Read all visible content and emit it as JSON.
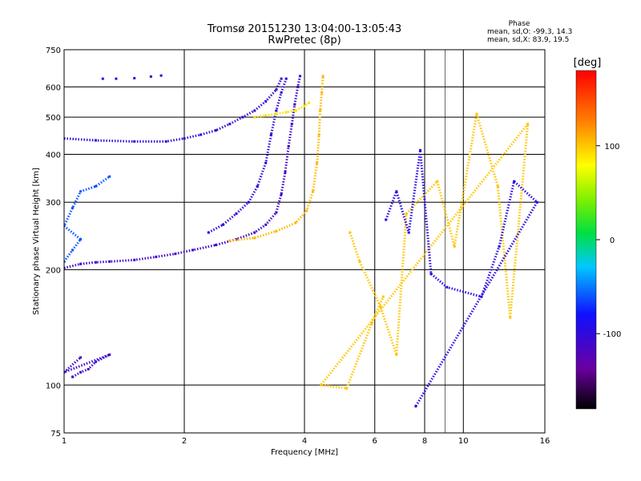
{
  "chart_data": {
    "type": "scatter",
    "title": "Tromsø 20151230 13:04:00-13:05:43",
    "subtitle": "RwPretec (8p)",
    "xlabel": "Frequency [MHz]",
    "ylabel": "Stationary phase Virtual Height [km]",
    "x_scale": "log",
    "y_scale": "log",
    "xlim": [
      1,
      16
    ],
    "ylim": [
      75,
      750
    ],
    "x_ticks": [
      1,
      2,
      4,
      6,
      8,
      10,
      16
    ],
    "x_grid": [
      1,
      2,
      4,
      6,
      8,
      10,
      16
    ],
    "x_minor_grid": [
      9
    ],
    "y_ticks": [
      75,
      100,
      200,
      300,
      400,
      500,
      600,
      750
    ],
    "y_grid": [
      100,
      200,
      300,
      400,
      500,
      600
    ],
    "phase_stats": {
      "heading": "Phase",
      "line_o": "mean, sd,O: -99.3, 14.3",
      "line_x": "mean, sd,X: 83.9, 19.5"
    },
    "colorbar": {
      "label": "[deg]",
      "range": [
        -180,
        180
      ],
      "ticks": [
        100,
        0,
        -100
      ]
    },
    "series": [
      {
        "values": [
          [
            1.0,
            202
          ],
          [
            1.1,
            207
          ],
          [
            1.2,
            209
          ],
          [
            1.3,
            210
          ],
          [
            1.5,
            212
          ],
          [
            1.7,
            216
          ],
          [
            1.9,
            220
          ],
          [
            2.1,
            225
          ],
          [
            2.4,
            232
          ],
          [
            2.7,
            240
          ],
          [
            3.0,
            250
          ],
          [
            3.2,
            262
          ],
          [
            3.4,
            282
          ],
          [
            3.5,
            315
          ],
          [
            3.58,
            360
          ],
          [
            3.65,
            420
          ],
          [
            3.72,
            480
          ],
          [
            3.78,
            540
          ],
          [
            3.85,
            600
          ],
          [
            3.9,
            640
          ]
        ],
        "phase": -110
      },
      {
        "values": [
          [
            1.0,
            440
          ],
          [
            1.2,
            435
          ],
          [
            1.5,
            432
          ],
          [
            1.8,
            432
          ],
          [
            2.0,
            440
          ],
          [
            2.2,
            450
          ],
          [
            2.4,
            462
          ],
          [
            2.6,
            480
          ],
          [
            2.8,
            500
          ],
          [
            3.0,
            520
          ],
          [
            3.2,
            550
          ],
          [
            3.4,
            590
          ],
          [
            3.5,
            630
          ]
        ],
        "phase": -105
      },
      {
        "values": [
          [
            2.3,
            250
          ],
          [
            2.5,
            262
          ],
          [
            2.7,
            280
          ],
          [
            2.9,
            300
          ],
          [
            3.05,
            330
          ],
          [
            3.2,
            380
          ],
          [
            3.3,
            450
          ],
          [
            3.4,
            520
          ],
          [
            3.5,
            580
          ],
          [
            3.6,
            630
          ]
        ],
        "phase": -100
      },
      {
        "values": [
          [
            2.6,
            238
          ],
          [
            3.0,
            242
          ],
          [
            3.4,
            252
          ],
          [
            3.8,
            265
          ],
          [
            4.05,
            285
          ],
          [
            4.2,
            320
          ],
          [
            4.3,
            380
          ],
          [
            4.35,
            450
          ],
          [
            4.38,
            520
          ],
          [
            4.42,
            580
          ],
          [
            4.45,
            640
          ]
        ],
        "phase": 105
      },
      {
        "values": [
          [
            3.0,
            500
          ],
          [
            3.2,
            505
          ],
          [
            3.4,
            510
          ],
          [
            3.6,
            515
          ],
          [
            3.8,
            520
          ],
          [
            4.0,
            535
          ],
          [
            4.1,
            545
          ]
        ],
        "phase": 90
      },
      {
        "values": [
          [
            1.25,
            630
          ],
          [
            1.35,
            630
          ],
          [
            1.5,
            632
          ],
          [
            1.65,
            638
          ],
          [
            1.75,
            642
          ]
        ],
        "phase": -100
      },
      {
        "values": [
          [
            1.0,
            210
          ],
          [
            1.05,
            225
          ],
          [
            1.1,
            240
          ],
          [
            1.0,
            260
          ],
          [
            1.05,
            290
          ],
          [
            1.1,
            320
          ],
          [
            1.2,
            330
          ],
          [
            1.3,
            350
          ]
        ],
        "phase": -60
      },
      {
        "values": [
          [
            1.05,
            105
          ],
          [
            1.1,
            108
          ],
          [
            1.15,
            110
          ],
          [
            1.2,
            115
          ],
          [
            1.3,
            120
          ],
          [
            1.0,
            108
          ],
          [
            1.1,
            118
          ]
        ],
        "phase": -110
      },
      {
        "values": [
          [
            5.2,
            250
          ],
          [
            5.5,
            210
          ],
          [
            6.2,
            160
          ],
          [
            6.8,
            120
          ],
          [
            7.2,
            280
          ],
          [
            8.6,
            340
          ],
          [
            9.5,
            230
          ],
          [
            10.8,
            510
          ],
          [
            12.2,
            330
          ],
          [
            13.1,
            150
          ],
          [
            14.5,
            480
          ],
          [
            4.4,
            100
          ],
          [
            5.1,
            98
          ],
          [
            5.9,
            145
          ],
          [
            6.3,
            170
          ]
        ],
        "phase": 100
      },
      {
        "values": [
          [
            6.4,
            270
          ],
          [
            6.8,
            320
          ],
          [
            7.3,
            250
          ],
          [
            7.8,
            410
          ],
          [
            8.3,
            195
          ],
          [
            9.1,
            180
          ],
          [
            11.1,
            170
          ],
          [
            12.3,
            230
          ],
          [
            13.4,
            340
          ],
          [
            15.3,
            300
          ],
          [
            7.6,
            88
          ]
        ],
        "phase": -95
      }
    ]
  }
}
